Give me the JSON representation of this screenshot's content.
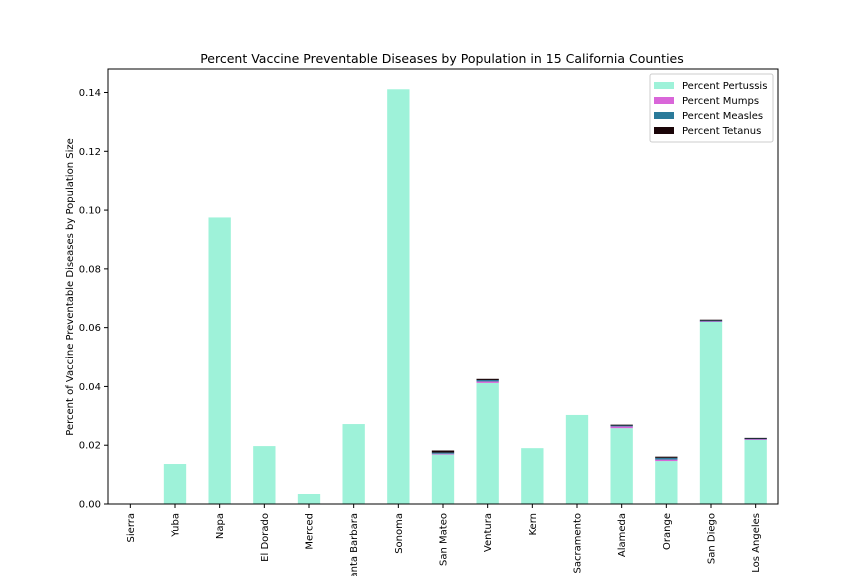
{
  "chart_data": {
    "type": "bar",
    "stacked": true,
    "title": "Percent Vaccine Preventable Diseases by Population in 15 California Counties",
    "xlabel": "",
    "ylabel": "Percent of Vaccine Preventable Diseases by Population Size",
    "ylim": [
      0,
      0.148
    ],
    "yticks": [
      0.0,
      0.02,
      0.04,
      0.06,
      0.08,
      0.1,
      0.12,
      0.14
    ],
    "ytick_labels": [
      "0.00",
      "0.02",
      "0.04",
      "0.06",
      "0.08",
      "0.10",
      "0.12",
      "0.14"
    ],
    "grid": false,
    "legend_position": "top-right",
    "categories": [
      "Sierra",
      "Yuba",
      "Napa",
      "El Dorado",
      "Merced",
      "Santa Barbara",
      "Sonoma",
      "San Mateo",
      "Ventura",
      "Kern",
      "Sacramento",
      "Alameda",
      "Orange",
      "San Diego",
      "Los Angeles"
    ],
    "series": [
      {
        "name": "Percent Pertussis",
        "color": "#9ef2d9",
        "values": [
          0.0,
          0.0136,
          0.0975,
          0.0197,
          0.0034,
          0.0272,
          0.1411,
          0.0169,
          0.0412,
          0.019,
          0.0303,
          0.0258,
          0.0146,
          0.062,
          0.0218
        ]
      },
      {
        "name": "Percent Mumps",
        "color": "#d966d9",
        "values": [
          0.0,
          0.0,
          0.0,
          0.0,
          0.0,
          0.0,
          0.0,
          0.0002,
          0.0005,
          0.0,
          0.0,
          0.0006,
          0.0005,
          0.0002,
          0.0003
        ]
      },
      {
        "name": "Percent Measles",
        "color": "#2a7a9a",
        "values": [
          0.0,
          0.0,
          0.0,
          0.0,
          0.0,
          0.0,
          0.0,
          0.0004,
          0.0005,
          0.0,
          0.0,
          0.0003,
          0.0006,
          0.0002,
          0.0002
        ]
      },
      {
        "name": "Percent Tetanus",
        "color": "#1a0508",
        "values": [
          0.0,
          0.0,
          0.0,
          0.0,
          0.0,
          0.0,
          0.0,
          0.0007,
          0.0004,
          0.0,
          0.0,
          0.0003,
          0.0004,
          0.0003,
          0.0002
        ]
      }
    ]
  }
}
